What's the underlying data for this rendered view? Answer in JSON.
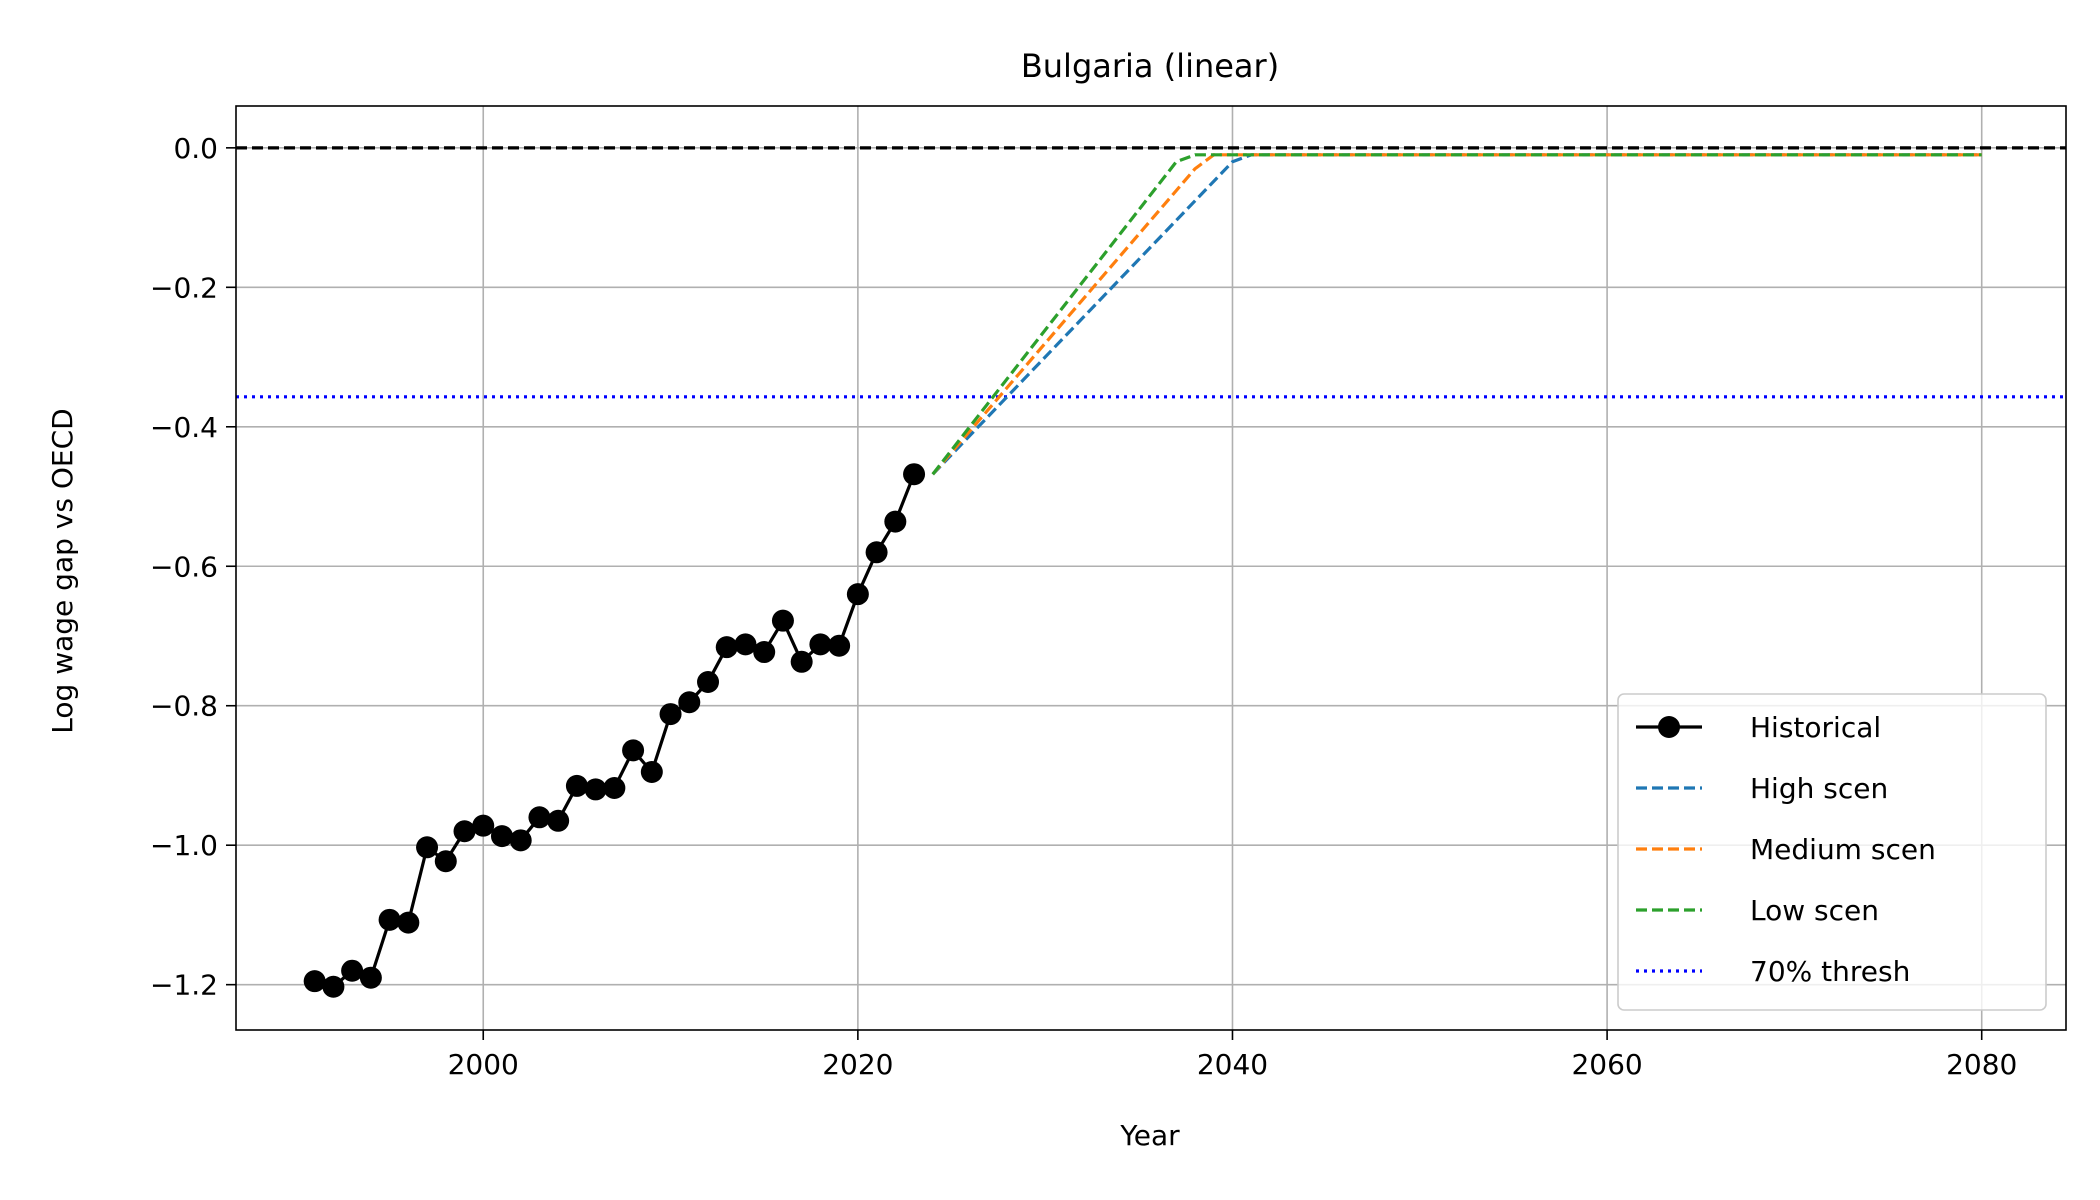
{
  "chart_data": {
    "type": "line",
    "title": "Bulgaria (linear)",
    "xlabel": "Year",
    "ylabel": "Log wage gap vs OECD",
    "xlim": [
      1986.8,
      2084.5
    ],
    "ylim": [
      -1.265,
      0.06
    ],
    "x_ticks": [
      2000,
      2020,
      2040,
      2060,
      2080
    ],
    "x_tick_labels": [
      "2000",
      "2020",
      "2040",
      "2060",
      "2080"
    ],
    "y_ticks": [
      0.0,
      -0.2,
      -0.4,
      -0.6,
      -0.8,
      -1.0,
      -1.2
    ],
    "y_tick_labels": [
      "0.0",
      "−0.2",
      "−0.4",
      "−0.6",
      "−0.8",
      "−1.0",
      "−1.2"
    ],
    "grid": true,
    "legend_position": "lower-right",
    "reference_lines": [
      {
        "y": 0.0,
        "color": "#000000",
        "style": "dashed"
      },
      {
        "y": -0.357,
        "color": "#0000ff",
        "style": "dotted",
        "legend": "70% thresh"
      }
    ],
    "series": [
      {
        "name": "Historical",
        "color": "#000000",
        "style": "solid-marker",
        "x": [
          1991,
          1992,
          1993,
          1994,
          1995,
          1996,
          1997,
          1998,
          1999,
          2000,
          2001,
          2002,
          2003,
          2004,
          2005,
          2006,
          2007,
          2008,
          2009,
          2010,
          2011,
          2012,
          2013,
          2014,
          2015,
          2016,
          2017,
          2018,
          2019,
          2020,
          2021,
          2022,
          2023
        ],
        "y": [
          -1.195,
          -1.203,
          -1.18,
          -1.19,
          -1.107,
          -1.111,
          -1.003,
          -1.023,
          -0.98,
          -0.972,
          -0.987,
          -0.993,
          -0.96,
          -0.965,
          -0.915,
          -0.92,
          -0.918,
          -0.864,
          -0.895,
          -0.812,
          -0.795,
          -0.766,
          -0.716,
          -0.712,
          -0.723,
          -0.678,
          -0.737,
          -0.712,
          -0.714,
          -0.64,
          -0.58,
          -0.536,
          -0.468
        ]
      },
      {
        "name": "High scen",
        "color": "#1f77b4",
        "style": "dashed",
        "x": [
          2024,
          2040,
          2041,
          2080
        ],
        "y": [
          -0.468,
          -0.02,
          -0.01,
          -0.01
        ]
      },
      {
        "name": "Medium scen",
        "color": "#ff7f0e",
        "style": "dashed",
        "x": [
          2024,
          2038,
          2039,
          2080
        ],
        "y": [
          -0.468,
          -0.03,
          -0.01,
          -0.01
        ]
      },
      {
        "name": "Low scen",
        "color": "#2ca02c",
        "style": "dashed",
        "x": [
          2024,
          2037,
          2038,
          2080
        ],
        "y": [
          -0.468,
          -0.02,
          -0.01,
          -0.01
        ]
      }
    ]
  }
}
